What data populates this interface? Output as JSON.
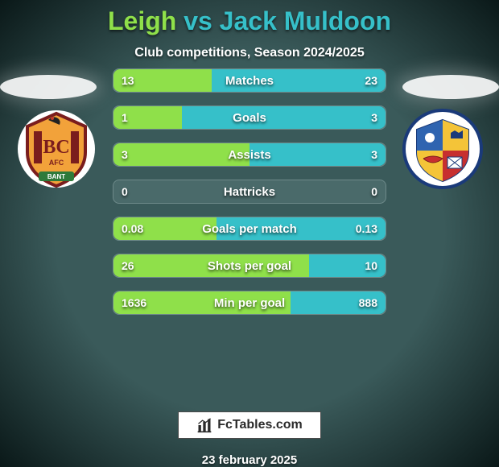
{
  "background": {
    "radial_inner": "#3a5a5a",
    "radial_outer": "#0a1818",
    "stops": [
      0,
      55,
      100
    ]
  },
  "header": {
    "title_left": "Leigh",
    "title_vs": " vs ",
    "title_right": "Jack Muldoon",
    "title_left_color": "#8fe04a",
    "title_right_color": "#36c0c9",
    "title_fontsize": 32,
    "subtitle": "Club competitions, Season 2024/2025",
    "subtitle_color": "#ffffff",
    "subtitle_fontsize": 16
  },
  "spotlights": {
    "left_fill": "#ffffff",
    "right_fill": "#ffffff",
    "opacity": 0.9
  },
  "badge_left": {
    "name": "Bradford City AFC crest",
    "bg": "#ffffff",
    "stripe1": "#7a1d1d",
    "stripe2": "#f2a23a",
    "text": "BC",
    "subtext": "AFC",
    "banner": "BANT"
  },
  "badge_right": {
    "name": "Harrogate Town crest",
    "bg": "#ffffff",
    "panel_tl": "#2f64b0",
    "panel_tr": "#f4c438",
    "panel_bl": "#f4c438",
    "panel_br": "#c72f2f",
    "ring": "#1a3a7a"
  },
  "bars": {
    "track_color": "#4a6a6a",
    "track_border": "#6e8a8a",
    "left_fill": "#8fe04a",
    "right_fill": "#36c0c9",
    "label_color": "#ffffff",
    "value_color": "#ffffff",
    "height": 30,
    "radius": 8,
    "gap": 16,
    "fontsize_label": 15,
    "fontsize_value": 14,
    "rows": [
      {
        "label": "Matches",
        "left": "13",
        "right": "23",
        "left_pct": 36,
        "right_pct": 64
      },
      {
        "label": "Goals",
        "left": "1",
        "right": "3",
        "left_pct": 25,
        "right_pct": 75
      },
      {
        "label": "Assists",
        "left": "3",
        "right": "3",
        "left_pct": 50,
        "right_pct": 50
      },
      {
        "label": "Hattricks",
        "left": "0",
        "right": "0",
        "left_pct": 0,
        "right_pct": 0
      },
      {
        "label": "Goals per match",
        "left": "0.08",
        "right": "0.13",
        "left_pct": 38,
        "right_pct": 62
      },
      {
        "label": "Shots per goal",
        "left": "26",
        "right": "10",
        "left_pct": 72,
        "right_pct": 28
      },
      {
        "label": "Min per goal",
        "left": "1636",
        "right": "888",
        "left_pct": 65,
        "right_pct": 35
      }
    ]
  },
  "brand": {
    "icon": "bar-chart-icon",
    "text": "FcTables.com",
    "box_bg": "#ffffff",
    "box_border": "#4a4a4a",
    "text_color": "#2a2a2a"
  },
  "footer": {
    "date": "23 february 2025",
    "color": "#ffffff",
    "fontsize": 15
  }
}
